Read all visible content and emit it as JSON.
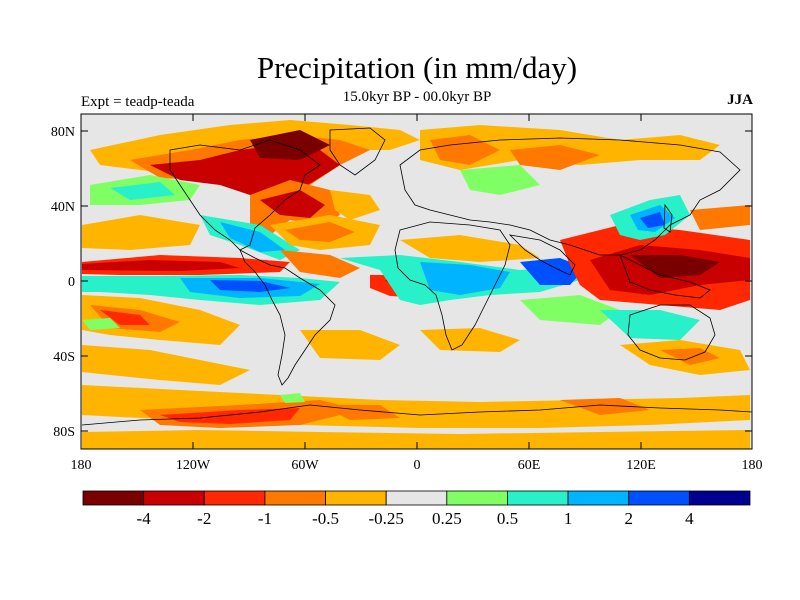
{
  "header": {
    "title": "Precipitation (in mm/day)",
    "subtitle": "15.0kyr BP - 00.0kyr BP",
    "left_label": "Expt = teadp-teada",
    "right_label": "JJA"
  },
  "map": {
    "lat_ticks": [
      "80N",
      "40N",
      "0",
      "40S",
      "80S"
    ],
    "lon_ticks": [
      "180",
      "120W",
      "60W",
      "0",
      "60E",
      "120E",
      "180"
    ],
    "background_color": "#e6e6e6"
  },
  "colorbar": {
    "labels": [
      "-4",
      "-2",
      "-1",
      "-0.5",
      "-0.25",
      "0.25",
      "0.5",
      "1",
      "2",
      "4"
    ],
    "colors": [
      "#7a0000",
      "#c80000",
      "#ff2800",
      "#ff7800",
      "#ffb400",
      "#e6e6e6",
      "#80ff64",
      "#28f0c8",
      "#00b4ff",
      "#0050ff",
      "#000090"
    ]
  }
}
